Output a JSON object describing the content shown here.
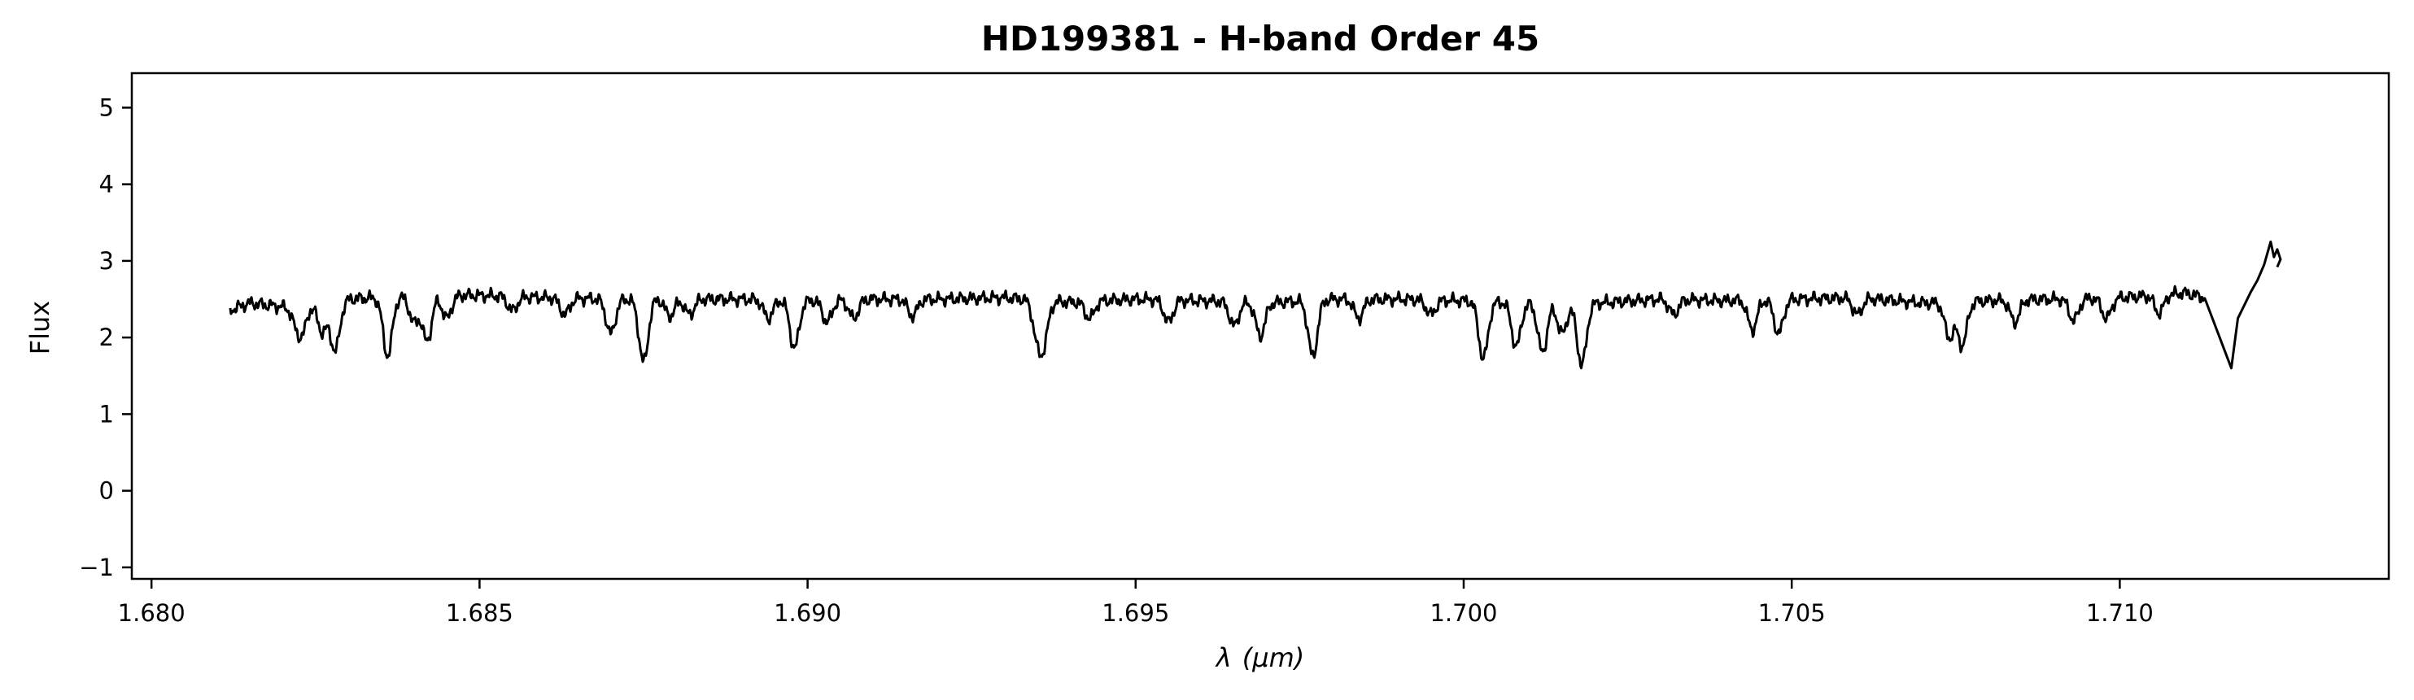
{
  "chart_data": {
    "type": "line",
    "title": "HD199381 - H-band Order 45",
    "xlabel_symbol": "λ",
    "xlabel_unit": "(μm)",
    "ylabel": "Flux",
    "xlim": [
      1.6797,
      1.7141
    ],
    "ylim": [
      -1.15,
      5.45
    ],
    "xticks": [
      1.68,
      1.685,
      1.69,
      1.695,
      1.7,
      1.705,
      1.71
    ],
    "xtick_labels": [
      "1.680",
      "1.685",
      "1.690",
      "1.695",
      "1.700",
      "1.705",
      "1.710"
    ],
    "yticks": [
      -1,
      0,
      1,
      2,
      3,
      4,
      5
    ],
    "ytick_labels": [
      "−1",
      "0",
      "1",
      "2",
      "3",
      "4",
      "5"
    ],
    "grid": false,
    "legend": "none",
    "series": [
      {
        "color": "#000000",
        "continuum": [
          [
            1.6812,
            2.36
          ],
          [
            1.6815,
            2.45
          ],
          [
            1.682,
            2.4
          ],
          [
            1.683,
            2.5
          ],
          [
            1.684,
            2.55
          ],
          [
            1.685,
            2.55
          ],
          [
            1.686,
            2.52
          ],
          [
            1.687,
            2.5
          ],
          [
            1.688,
            2.5
          ],
          [
            1.689,
            2.5
          ],
          [
            1.69,
            2.48
          ],
          [
            1.691,
            2.5
          ],
          [
            1.692,
            2.5
          ],
          [
            1.693,
            2.52
          ],
          [
            1.694,
            2.46
          ],
          [
            1.695,
            2.5
          ],
          [
            1.696,
            2.48
          ],
          [
            1.697,
            2.45
          ],
          [
            1.698,
            2.5
          ],
          [
            1.699,
            2.5
          ],
          [
            1.7,
            2.48
          ],
          [
            1.701,
            2.45
          ],
          [
            1.702,
            2.45
          ],
          [
            1.703,
            2.5
          ],
          [
            1.704,
            2.48
          ],
          [
            1.705,
            2.5
          ],
          [
            1.706,
            2.52
          ],
          [
            1.707,
            2.45
          ],
          [
            1.708,
            2.48
          ],
          [
            1.709,
            2.5
          ],
          [
            1.71,
            2.52
          ],
          [
            1.7105,
            2.55
          ],
          [
            1.711,
            2.58
          ],
          [
            1.7113,
            2.52
          ]
        ],
        "absorption_lines": [
          [
            1.6822,
            2.22
          ],
          [
            1.6823,
            2.1
          ],
          [
            1.6826,
            2.08
          ],
          [
            1.6828,
            1.83
          ],
          [
            1.6836,
            1.76
          ],
          [
            1.684,
            2.2
          ],
          [
            1.6842,
            1.95
          ],
          [
            1.6845,
            2.25
          ],
          [
            1.6855,
            2.35
          ],
          [
            1.6863,
            2.3
          ],
          [
            1.687,
            2.05
          ],
          [
            1.6875,
            1.68
          ],
          [
            1.6879,
            2.28
          ],
          [
            1.6882,
            2.3
          ],
          [
            1.6894,
            2.25
          ],
          [
            1.6898,
            1.86
          ],
          [
            1.6903,
            2.2
          ],
          [
            1.6907,
            2.25
          ],
          [
            1.6916,
            2.28
          ],
          [
            1.6935,
            2.05
          ],
          [
            1.6936,
            2.0
          ],
          [
            1.6943,
            2.25
          ],
          [
            1.6955,
            2.2
          ],
          [
            1.6965,
            2.15
          ],
          [
            1.6969,
            2.02
          ],
          [
            1.6977,
            1.75
          ],
          [
            1.6984,
            2.25
          ],
          [
            1.6995,
            2.3
          ],
          [
            1.7003,
            1.72
          ],
          [
            1.7008,
            1.88
          ],
          [
            1.7012,
            1.8
          ],
          [
            1.7015,
            2.05
          ],
          [
            1.7018,
            1.64
          ],
          [
            1.7032,
            2.3
          ],
          [
            1.7044,
            2.1
          ],
          [
            1.7048,
            2.05
          ],
          [
            1.706,
            2.3
          ],
          [
            1.7074,
            2.0
          ],
          [
            1.7076,
            1.9
          ],
          [
            1.7084,
            2.2
          ],
          [
            1.7093,
            2.22
          ],
          [
            1.7098,
            2.25
          ],
          [
            1.7106,
            2.32
          ],
          [
            1.7116,
            1.05
          ]
        ],
        "tail_points": [
          [
            1.7117,
            1.6
          ],
          [
            1.7118,
            2.25
          ],
          [
            1.712,
            2.6
          ],
          [
            1.7121,
            2.75
          ],
          [
            1.7122,
            2.95
          ],
          [
            1.71225,
            3.1
          ],
          [
            1.7123,
            3.25
          ],
          [
            1.71235,
            3.05
          ],
          [
            1.7124,
            3.15
          ],
          [
            1.71245,
            3.02
          ],
          [
            1.7124,
            2.92
          ]
        ]
      }
    ]
  }
}
